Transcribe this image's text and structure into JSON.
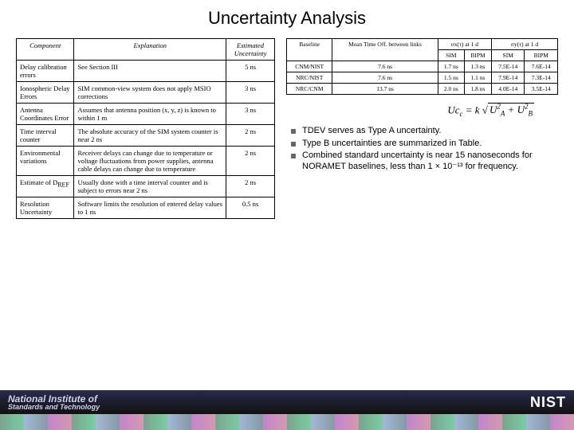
{
  "title": "Uncertainty Analysis",
  "tableA": {
    "headers": [
      "Component",
      "Explanation",
      "Estimated Uncertainty"
    ],
    "rows": [
      {
        "c1": "Delay calibration errors",
        "c2": "See Section III",
        "c3": "5 ns"
      },
      {
        "c1": "Ionospheric Delay Errors",
        "c2": "SIM common-view system does not apply MSIO corrections",
        "c3": "3 ns"
      },
      {
        "c1": "Antenna Coordinates Error",
        "c2": "Assumes that antenna position (x, y, z) is known to within 1 m",
        "c3": "3 ns"
      },
      {
        "c1": "Time interval counter",
        "c2": "The absolute accuracy of the SIM system counter is near 2 ns",
        "c3": "2 ns"
      },
      {
        "c1": "Environmental variations",
        "c2": "Receiver delays can change due to temperature or voltage fluctuations from power supplies, antenna cable delays can change due to temperature",
        "c3": "2 ns"
      },
      {
        "c1": "Estimate of D_REF",
        "c2": "Usually done with a time interval counter and is subject to errors near 2 ns",
        "c3": "2 ns"
      },
      {
        "c1": "Resolution Uncertainty",
        "c2": "Software limits the resolution of entered delay values to 1 ns",
        "c3": "0.5 ns"
      }
    ]
  },
  "tableB": {
    "h1": "Baseline",
    "h2": "Mean Time Off. between links",
    "h3": "σx(τ) at 1 d",
    "h4": "σy(τ) at 1 d",
    "sub": [
      "SIM",
      "BIPM",
      "SIM",
      "BIPM"
    ],
    "rows": [
      {
        "b": "CNM/NIST",
        "m": "7.6 ns",
        "v": [
          "1.7 ns",
          "1.3 ns",
          "7.5E-14",
          "7.6E-14"
        ]
      },
      {
        "b": "NRC/NIST",
        "m": "7.6 ns",
        "v": [
          "1.5 ns",
          "1.1 ns",
          "7.9E-14",
          "7.3E-14"
        ]
      },
      {
        "b": "NRC/CNM",
        "m": "13.7 ns",
        "v": [
          "2.0 ns",
          "1.8 ns",
          "4.0E-14",
          "3.5E-14"
        ]
      }
    ]
  },
  "formula": {
    "lhs": "Uc",
    "eq": "= k",
    "a": "U",
    "a2": "2",
    "aA": "A",
    "plus": " + ",
    "b": "U",
    "b2": "2",
    "bB": "B"
  },
  "bullets": [
    "TDEV serves as Type A uncertainty.",
    "Type B uncertainties are summarized in Table.",
    "Combined standard uncertainty is near 15 nanoseconds for NORAMET baselines, less than 1 × 10⁻¹³ for frequency."
  ],
  "footer": {
    "line1": "National Institute of",
    "line2": "Standards and Technology",
    "nist": "NIST"
  }
}
